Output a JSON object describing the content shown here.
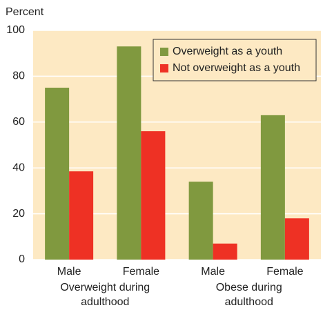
{
  "chart_data": {
    "type": "bar",
    "y_axis_label": "Percent",
    "categories": [
      "Male",
      "Female",
      "Male",
      "Female"
    ],
    "group_labels": [
      [
        "Overweight during",
        "adulthood"
      ],
      [
        "Obese during",
        "adulthood"
      ]
    ],
    "series": [
      {
        "name": "Overweight as a youth",
        "color": "#80993f",
        "values": [
          75,
          93,
          34,
          63
        ]
      },
      {
        "name": "Not overweight as a youth",
        "color": "#ee3124",
        "values": [
          38.5,
          56,
          7,
          18
        ]
      }
    ],
    "ylim": [
      0,
      100
    ],
    "yticks": [
      0,
      20,
      40,
      60,
      80,
      100
    ],
    "grid": true,
    "background": "#fde9c3",
    "legend": "upper right"
  }
}
